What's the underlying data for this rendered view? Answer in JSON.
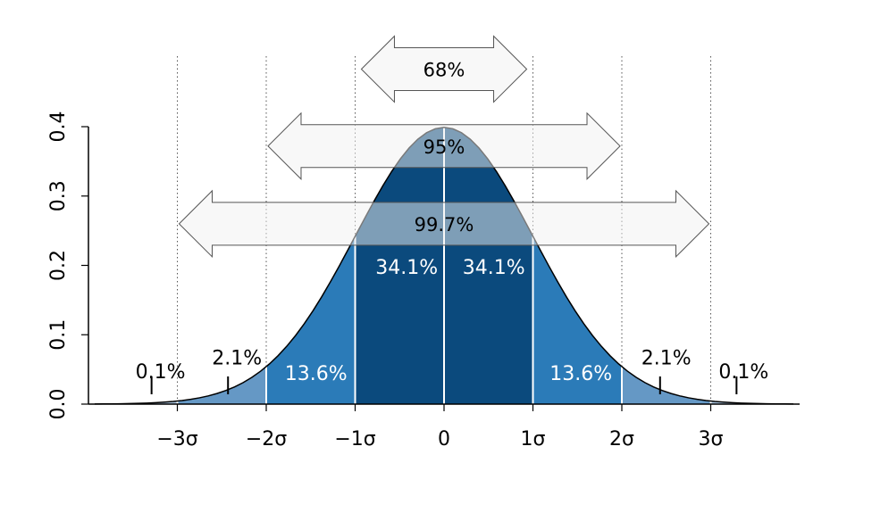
{
  "chart_data": {
    "type": "area",
    "title": "",
    "xlabel": "",
    "ylabel": "",
    "xlim": [
      -3.93,
      3.93
    ],
    "ylim": [
      0,
      0.4
    ],
    "x_ticks": [
      {
        "value": -3,
        "label": "−3σ"
      },
      {
        "value": -2,
        "label": "−2σ"
      },
      {
        "value": -1,
        "label": "−1σ"
      },
      {
        "value": 0,
        "label": "0"
      },
      {
        "value": 1,
        "label": "1σ"
      },
      {
        "value": 2,
        "label": "2σ"
      },
      {
        "value": 3,
        "label": "3σ"
      }
    ],
    "y_ticks": [
      {
        "value": 0.0,
        "label": "0.0"
      },
      {
        "value": 0.1,
        "label": "0.1"
      },
      {
        "value": 0.2,
        "label": "0.2"
      },
      {
        "value": 0.3,
        "label": "0.3"
      },
      {
        "value": 0.4,
        "label": "0.4"
      }
    ],
    "grid": "vertical dotted at ±1σ, ±2σ, ±3σ",
    "curve": "standard normal density",
    "bands": [
      {
        "from": -3.93,
        "to": -3,
        "color": "#a8c3dc"
      },
      {
        "from": -3,
        "to": -2,
        "color": "#6598c5"
      },
      {
        "from": -2,
        "to": -1,
        "color": "#2b7bb8"
      },
      {
        "from": -1,
        "to": 1,
        "color": "#0b4a7d"
      },
      {
        "from": 1,
        "to": 2,
        "color": "#2b7bb8"
      },
      {
        "from": 2,
        "to": 3,
        "color": "#6598c5"
      },
      {
        "from": 3,
        "to": 3.93,
        "color": "#a8c3dc"
      }
    ],
    "region_labels": [
      {
        "text": "34.1%",
        "x": -0.42,
        "y": 0.188,
        "color": "light"
      },
      {
        "text": "34.1%",
        "x": 0.56,
        "y": 0.188,
        "color": "light"
      },
      {
        "text": "13.6%",
        "x": -1.44,
        "y": 0.035,
        "color": "light"
      },
      {
        "text": "13.6%",
        "x": 1.54,
        "y": 0.035,
        "color": "light"
      }
    ],
    "tail_labels": [
      {
        "text": "2.1%",
        "x": -2.33,
        "y": 0.057,
        "pointer_x": -2.43
      },
      {
        "text": "2.1%",
        "x": 2.5,
        "y": 0.057,
        "pointer_x": 2.43
      },
      {
        "text": "0.1%",
        "x": -3.19,
        "y": 0.037,
        "pointer_x": -3.29
      },
      {
        "text": "0.1%",
        "x": 3.37,
        "y": 0.037,
        "pointer_x": 3.29
      }
    ],
    "range_arrows": [
      {
        "text": "68%",
        "from": -0.93,
        "to": 0.93,
        "y": 0.483
      },
      {
        "text": "95%",
        "from": -1.98,
        "to": 1.98,
        "y": 0.372
      },
      {
        "text": "99.7%",
        "from": -2.98,
        "to": 2.98,
        "y": 0.26
      }
    ],
    "colors": {
      "arrow_fill": "#f2f2f2",
      "arrow_stroke": "#555555",
      "curve_stroke": "#000000",
      "divider": "#ffffff"
    }
  }
}
